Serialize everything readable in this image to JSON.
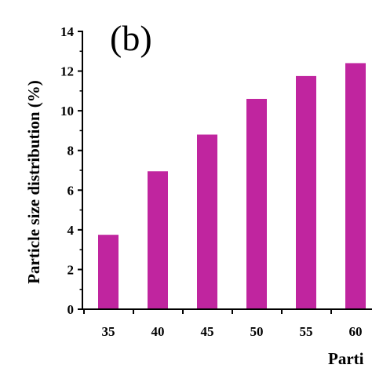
{
  "chart_data": {
    "type": "bar",
    "panel_label": "(b)",
    "categories": [
      "35",
      "40",
      "45",
      "50",
      "55",
      "60"
    ],
    "values": [
      3.75,
      6.95,
      8.8,
      10.6,
      11.75,
      12.4
    ],
    "ylabel": "Particle size distribution (%)",
    "xlabel": "Parti",
    "ylim": [
      0,
      14
    ],
    "yticks": [
      0,
      2,
      4,
      6,
      8,
      10,
      12,
      14
    ],
    "bar_color": "#c0259f",
    "grid": false,
    "legend": "none"
  }
}
